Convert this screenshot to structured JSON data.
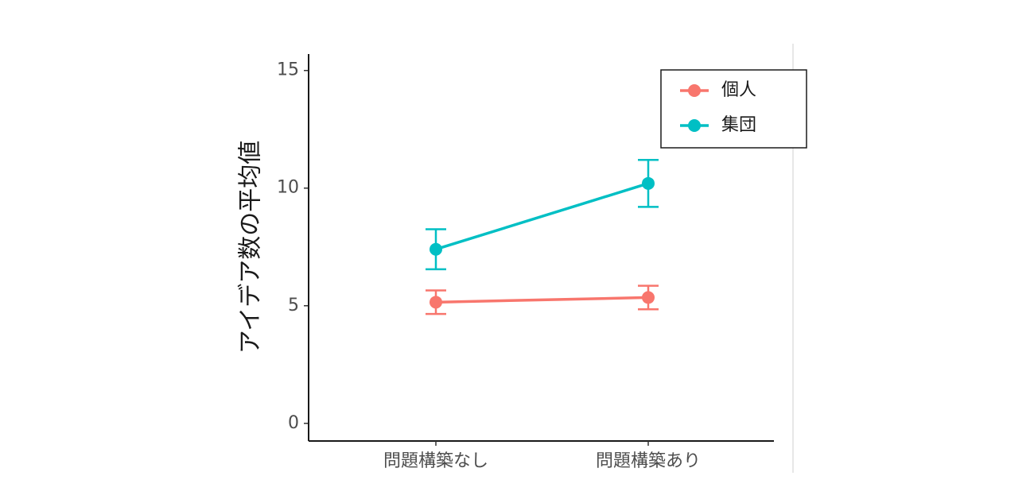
{
  "chart_data": {
    "type": "line",
    "y_label": "アイデア数の平均値",
    "categories": [
      "問題構築なし",
      "問題構築あり"
    ],
    "series": [
      {
        "name": "個人",
        "color": "#f8766d",
        "values": [
          5.15,
          5.35
        ],
        "errors": [
          0.5,
          0.5
        ]
      },
      {
        "name": "集団",
        "color": "#00bfc4",
        "values": [
          7.4,
          10.2
        ],
        "errors": [
          0.85,
          1.0
        ]
      }
    ],
    "ylim": [
      -0.75,
      15.7
    ],
    "yticks": [
      0,
      5,
      10,
      15
    ],
    "legend": "top-right"
  }
}
